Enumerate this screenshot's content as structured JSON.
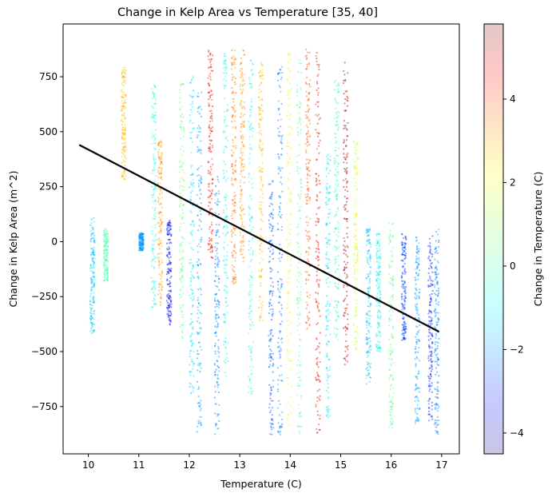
{
  "chart_data": {
    "type": "scatter",
    "title": "Change in Kelp Area vs Temperature [35, 40]",
    "xlabel": "Temperature (C)",
    "ylabel": "Change in Kelp Area (m^2)",
    "xlim": [
      9.5,
      17.35
    ],
    "ylim": [
      -965,
      990
    ],
    "xticks": [
      10,
      11,
      12,
      13,
      14,
      15,
      16,
      17
    ],
    "yticks": [
      -750,
      -500,
      -250,
      0,
      250,
      500,
      750
    ],
    "grid": false,
    "colorbar": {
      "label": "Change in Temperature (C)",
      "range": [
        -4.5,
        5.8
      ],
      "ticks": [
        -4,
        -2,
        0,
        2,
        4
      ],
      "colormap": "jet",
      "alpha": 0.25
    },
    "trend_line": {
      "x": [
        9.82,
        16.95
      ],
      "y": [
        440,
        -410
      ],
      "color": "#000000"
    },
    "point_clusters": [
      {
        "x": 10.08,
        "y_range": [
          -420,
          110
        ],
        "dtemp": -1.2
      },
      {
        "x": 10.35,
        "y_range": [
          -180,
          60
        ],
        "dtemp": 0.2
      },
      {
        "x": 10.7,
        "y_range": [
          280,
          800
        ],
        "dtemp": 2.6
      },
      {
        "x": 11.05,
        "y_range": [
          -40,
          40
        ],
        "dtemp": -1.6
      },
      {
        "x": 11.3,
        "y_range": [
          -300,
          720
        ],
        "dtemp": -0.3
      },
      {
        "x": 11.42,
        "y_range": [
          -290,
          470
        ],
        "dtemp": 3.0
      },
      {
        "x": 11.6,
        "y_range": [
          -380,
          100
        ],
        "dtemp": -3.2
      },
      {
        "x": 11.85,
        "y_range": [
          -440,
          720
        ],
        "dtemp": 0.5
      },
      {
        "x": 12.05,
        "y_range": [
          -700,
          760
        ],
        "dtemp": -0.9
      },
      {
        "x": 12.2,
        "y_range": [
          -870,
          700
        ],
        "dtemp": -1.6
      },
      {
        "x": 12.42,
        "y_range": [
          -80,
          890
        ],
        "dtemp": 4.4
      },
      {
        "x": 12.55,
        "y_range": [
          -880,
          300
        ],
        "dtemp": -1.9
      },
      {
        "x": 12.72,
        "y_range": [
          -620,
          880
        ],
        "dtemp": -0.6
      },
      {
        "x": 12.88,
        "y_range": [
          -200,
          880
        ],
        "dtemp": 3.4
      },
      {
        "x": 13.05,
        "y_range": [
          -90,
          880
        ],
        "dtemp": 3.0
      },
      {
        "x": 13.22,
        "y_range": [
          -720,
          860
        ],
        "dtemp": -0.4
      },
      {
        "x": 13.42,
        "y_range": [
          -360,
          820
        ],
        "dtemp": 2.6
      },
      {
        "x": 13.62,
        "y_range": [
          -880,
          280
        ],
        "dtemp": -2.3
      },
      {
        "x": 13.8,
        "y_range": [
          -880,
          800
        ],
        "dtemp": -1.9
      },
      {
        "x": 13.98,
        "y_range": [
          -860,
          870
        ],
        "dtemp": 1.8
      },
      {
        "x": 14.18,
        "y_range": [
          -880,
          850
        ],
        "dtemp": 0.3
      },
      {
        "x": 14.35,
        "y_range": [
          -400,
          890
        ],
        "dtemp": 3.6
      },
      {
        "x": 14.55,
        "y_range": [
          -870,
          870
        ],
        "dtemp": 4.6
      },
      {
        "x": 14.75,
        "y_range": [
          -800,
          400
        ],
        "dtemp": -0.9
      },
      {
        "x": 14.92,
        "y_range": [
          -450,
          760
        ],
        "dtemp": -0.2
      },
      {
        "x": 15.1,
        "y_range": [
          -560,
          820
        ],
        "dtemp": 5.4
      },
      {
        "x": 15.3,
        "y_range": [
          -500,
          460
        ],
        "dtemp": 1.6
      },
      {
        "x": 15.55,
        "y_range": [
          -650,
          60
        ],
        "dtemp": -1.2
      },
      {
        "x": 15.75,
        "y_range": [
          -500,
          40
        ],
        "dtemp": -0.6
      },
      {
        "x": 16.0,
        "y_range": [
          -850,
          90
        ],
        "dtemp": 0.4
      },
      {
        "x": 16.25,
        "y_range": [
          -450,
          40
        ],
        "dtemp": -2.6
      },
      {
        "x": 16.52,
        "y_range": [
          -840,
          20
        ],
        "dtemp": -1.6
      },
      {
        "x": 16.78,
        "y_range": [
          -830,
          30
        ],
        "dtemp": -2.9
      },
      {
        "x": 16.9,
        "y_range": [
          -880,
          60
        ],
        "dtemp": -1.9
      }
    ]
  }
}
